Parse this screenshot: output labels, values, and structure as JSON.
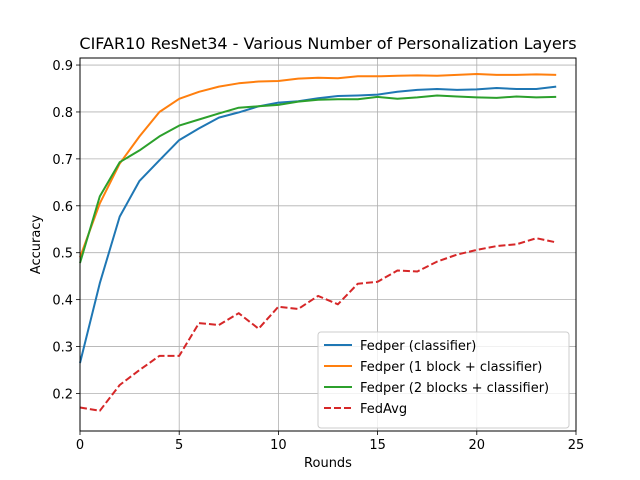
{
  "chart_data": {
    "type": "line",
    "title": "CIFAR10 ResNet34 - Various Number of Personalization Layers",
    "xlabel": "Rounds",
    "ylabel": "Accuracy",
    "xlim": [
      0,
      25
    ],
    "ylim": [
      0.12,
      0.915
    ],
    "xticks": [
      0,
      5,
      10,
      15,
      20,
      25
    ],
    "yticks": [
      0.2,
      0.3,
      0.4,
      0.5,
      0.6,
      0.7,
      0.8,
      0.9
    ],
    "grid": true,
    "legend_position": "lower-right",
    "x": [
      0,
      1,
      2,
      3,
      4,
      5,
      6,
      7,
      8,
      9,
      10,
      11,
      12,
      13,
      14,
      15,
      16,
      17,
      18,
      19,
      20,
      21,
      22,
      23,
      24
    ],
    "series": [
      {
        "name": "Fedper (classifier)",
        "color": "#1f77b4",
        "dash": "solid",
        "values": [
          0.265,
          0.435,
          0.577,
          0.653,
          0.697,
          0.74,
          0.765,
          0.788,
          0.799,
          0.812,
          0.82,
          0.823,
          0.829,
          0.834,
          0.835,
          0.837,
          0.843,
          0.847,
          0.849,
          0.847,
          0.848,
          0.851,
          0.849,
          0.849,
          0.854
        ]
      },
      {
        "name": "Fedper (1 block + classifier)",
        "color": "#ff7f0e",
        "dash": "solid",
        "values": [
          0.49,
          0.605,
          0.69,
          0.748,
          0.8,
          0.828,
          0.843,
          0.854,
          0.861,
          0.865,
          0.866,
          0.871,
          0.873,
          0.872,
          0.876,
          0.876,
          0.877,
          0.878,
          0.877,
          0.879,
          0.881,
          0.879,
          0.879,
          0.88,
          0.879
        ]
      },
      {
        "name": "Fedper (2 blocks + classifier)",
        "color": "#2ca02c",
        "dash": "solid",
        "values": [
          0.478,
          0.62,
          0.693,
          0.718,
          0.748,
          0.771,
          0.784,
          0.797,
          0.809,
          0.812,
          0.815,
          0.822,
          0.826,
          0.827,
          0.827,
          0.832,
          0.828,
          0.831,
          0.835,
          0.833,
          0.831,
          0.83,
          0.833,
          0.831,
          0.832
        ]
      },
      {
        "name": "FedAvg",
        "color": "#d62728",
        "dash": "dashed",
        "values": [
          0.17,
          0.163,
          0.218,
          0.25,
          0.28,
          0.28,
          0.35,
          0.346,
          0.371,
          0.338,
          0.385,
          0.38,
          0.408,
          0.39,
          0.434,
          0.438,
          0.462,
          0.46,
          0.481,
          0.496,
          0.506,
          0.514,
          0.518,
          0.531,
          0.522
        ]
      }
    ]
  }
}
